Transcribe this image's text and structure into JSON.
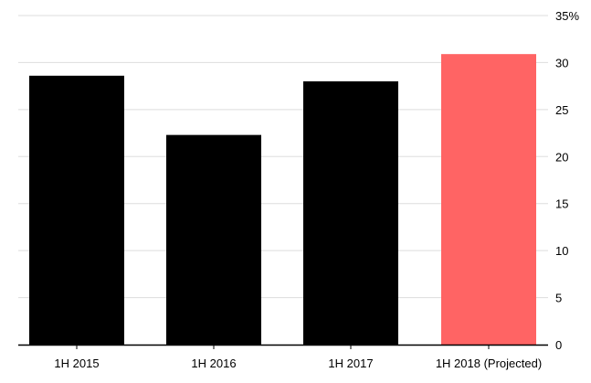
{
  "chart_data": {
    "type": "bar",
    "categories": [
      "1H 2015",
      "1H 2016",
      "1H 2017",
      "1H 2018 (Projected)"
    ],
    "values": [
      28.6,
      22.3,
      28.0,
      30.9
    ],
    "ylim": [
      0,
      35
    ],
    "yticks": [
      0,
      5,
      10,
      15,
      20,
      25,
      30,
      35
    ],
    "ytick_labels": [
      "0",
      "5",
      "10",
      "15",
      "20",
      "25",
      "30",
      "35%"
    ],
    "yaxis_position": "right",
    "grid": true,
    "colors": {
      "actual": "#000000",
      "projected": "#ff6464",
      "grid": "#dddddd",
      "baseline": "#000000"
    },
    "projected_index": 3
  }
}
